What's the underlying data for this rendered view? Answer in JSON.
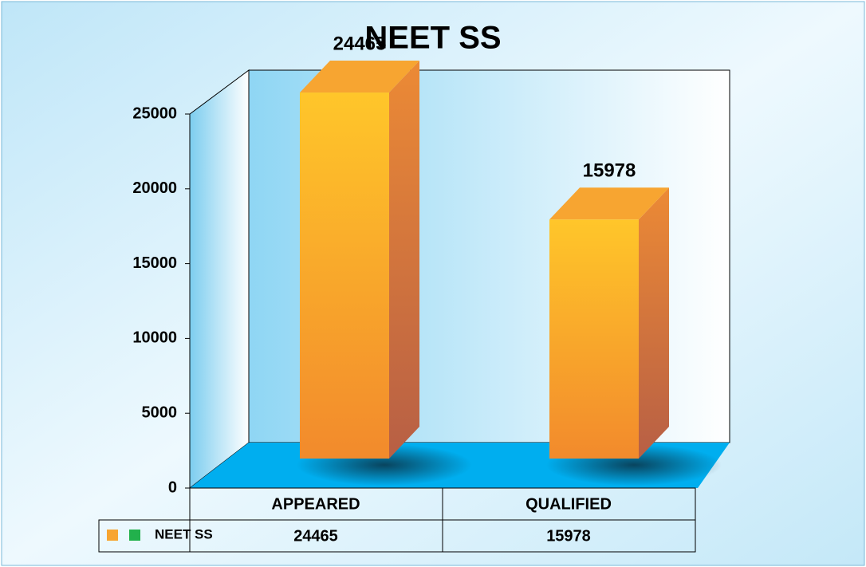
{
  "chart_data": {
    "type": "bar3d",
    "title": "NEET SS",
    "categories": [
      "APPEARED",
      "QUALIFIED"
    ],
    "series": [
      {
        "name": "NEET SS",
        "color": "#f7a531",
        "values": [
          24465,
          15978
        ]
      }
    ],
    "ylim": [
      0,
      25000
    ],
    "yticks": [
      0,
      5000,
      10000,
      15000,
      20000,
      25000
    ]
  }
}
